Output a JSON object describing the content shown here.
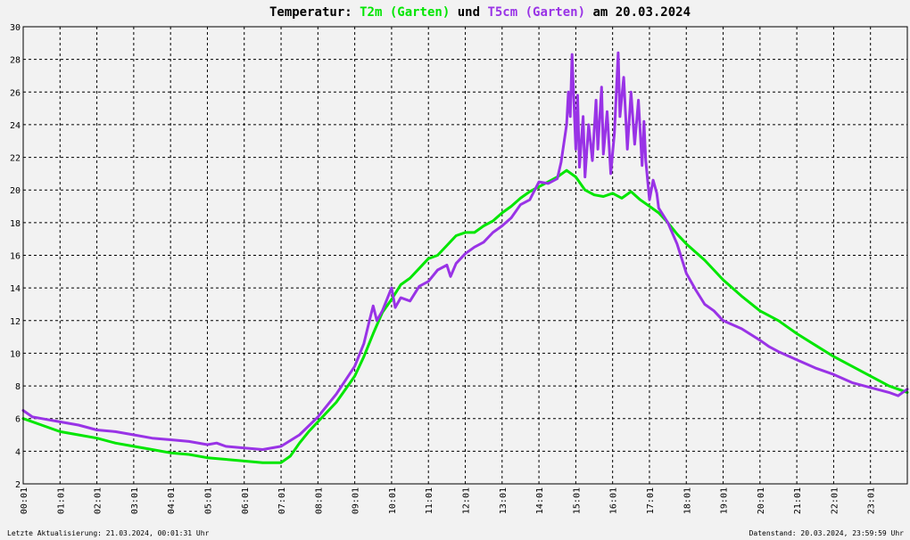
{
  "title": {
    "prefix": "Temperatur: ",
    "series1": "T2m (Garten)",
    "joiner": " und ",
    "series2": "T5cm (Garten)",
    "suffix": " am 20.03.2024"
  },
  "footer": {
    "left": "Letzte Aktualisierung: 21.03.2024, 00:01:31 Uhr",
    "right": "Datenstand: 20.03.2024, 23:59:59 Uhr"
  },
  "colors": {
    "t2m": "#00e600",
    "t5cm": "#9933e6",
    "grid": "#000000",
    "background": "#f2f2f2"
  },
  "chart_data": {
    "type": "line",
    "title": "Temperatur: T2m (Garten) und T5cm (Garten) am 20.03.2024",
    "x_tick_labels": [
      "00:01",
      "01:01",
      "02:01",
      "03:01",
      "04:01",
      "05:01",
      "06:01",
      "07:01",
      "08:01",
      "09:01",
      "10:01",
      "11:01",
      "12:01",
      "13:01",
      "14:01",
      "15:01",
      "16:01",
      "17:01",
      "18:01",
      "19:01",
      "20:01",
      "21:01",
      "22:01",
      "23:01"
    ],
    "y_tick_labels": [
      "2",
      "4",
      "6",
      "8",
      "10",
      "12",
      "14",
      "16",
      "18",
      "20",
      "22",
      "24",
      "26",
      "28",
      "30"
    ],
    "xlim": [
      0,
      24
    ],
    "ylim": [
      2,
      30
    ],
    "grid": true,
    "series": [
      {
        "name": "T2m (Garten)",
        "color": "#00e600",
        "points": [
          [
            0,
            6.0
          ],
          [
            0.5,
            5.6
          ],
          [
            1,
            5.2
          ],
          [
            1.5,
            5.0
          ],
          [
            2,
            4.8
          ],
          [
            2.5,
            4.5
          ],
          [
            3,
            4.3
          ],
          [
            3.5,
            4.1
          ],
          [
            4,
            3.9
          ],
          [
            4.5,
            3.8
          ],
          [
            5,
            3.6
          ],
          [
            5.5,
            3.5
          ],
          [
            6,
            3.4
          ],
          [
            6.5,
            3.3
          ],
          [
            7,
            3.3
          ],
          [
            7.25,
            3.7
          ],
          [
            7.5,
            4.5
          ],
          [
            7.75,
            5.2
          ],
          [
            8,
            5.8
          ],
          [
            8.5,
            7.0
          ],
          [
            9,
            8.6
          ],
          [
            9.25,
            9.8
          ],
          [
            9.5,
            11.2
          ],
          [
            9.75,
            12.5
          ],
          [
            10,
            13.3
          ],
          [
            10.25,
            14.2
          ],
          [
            10.5,
            14.6
          ],
          [
            10.75,
            15.2
          ],
          [
            11,
            15.8
          ],
          [
            11.25,
            16.0
          ],
          [
            11.5,
            16.6
          ],
          [
            11.75,
            17.2
          ],
          [
            12,
            17.4
          ],
          [
            12.25,
            17.4
          ],
          [
            12.5,
            17.8
          ],
          [
            12.75,
            18.1
          ],
          [
            13,
            18.6
          ],
          [
            13.25,
            19.0
          ],
          [
            13.5,
            19.5
          ],
          [
            13.75,
            19.9
          ],
          [
            14,
            20.2
          ],
          [
            14.25,
            20.5
          ],
          [
            14.5,
            20.8
          ],
          [
            14.75,
            21.2
          ],
          [
            15,
            20.8
          ],
          [
            15.25,
            20.0
          ],
          [
            15.5,
            19.7
          ],
          [
            15.75,
            19.6
          ],
          [
            16,
            19.8
          ],
          [
            16.25,
            19.5
          ],
          [
            16.5,
            19.9
          ],
          [
            16.75,
            19.4
          ],
          [
            17,
            19.0
          ],
          [
            17.25,
            18.6
          ],
          [
            17.5,
            18.0
          ],
          [
            17.75,
            17.3
          ],
          [
            18,
            16.7
          ],
          [
            18.5,
            15.7
          ],
          [
            19,
            14.5
          ],
          [
            19.5,
            13.5
          ],
          [
            20,
            12.6
          ],
          [
            20.5,
            12.0
          ],
          [
            21,
            11.2
          ],
          [
            21.5,
            10.5
          ],
          [
            22,
            9.8
          ],
          [
            22.5,
            9.2
          ],
          [
            23,
            8.6
          ],
          [
            23.5,
            8.0
          ],
          [
            24,
            7.6
          ]
        ]
      },
      {
        "name": "T5cm (Garten)",
        "color": "#9933e6",
        "points": [
          [
            0,
            6.5
          ],
          [
            0.25,
            6.1
          ],
          [
            0.5,
            6.0
          ],
          [
            1,
            5.8
          ],
          [
            1.5,
            5.6
          ],
          [
            2,
            5.3
          ],
          [
            2.5,
            5.2
          ],
          [
            3,
            5.0
          ],
          [
            3.5,
            4.8
          ],
          [
            4,
            4.7
          ],
          [
            4.5,
            4.6
          ],
          [
            5,
            4.4
          ],
          [
            5.25,
            4.5
          ],
          [
            5.5,
            4.3
          ],
          [
            6,
            4.2
          ],
          [
            6.5,
            4.1
          ],
          [
            7,
            4.3
          ],
          [
            7.5,
            5.0
          ],
          [
            8,
            6.1
          ],
          [
            8.5,
            7.5
          ],
          [
            9,
            9.2
          ],
          [
            9.25,
            10.6
          ],
          [
            9.4,
            12.0
          ],
          [
            9.5,
            12.9
          ],
          [
            9.6,
            12.0
          ],
          [
            9.75,
            12.6
          ],
          [
            10,
            14.0
          ],
          [
            10.1,
            12.8
          ],
          [
            10.25,
            13.4
          ],
          [
            10.5,
            13.2
          ],
          [
            10.75,
            14.1
          ],
          [
            11,
            14.4
          ],
          [
            11.25,
            15.1
          ],
          [
            11.5,
            15.4
          ],
          [
            11.6,
            14.7
          ],
          [
            11.75,
            15.5
          ],
          [
            12,
            16.1
          ],
          [
            12.25,
            16.5
          ],
          [
            12.5,
            16.8
          ],
          [
            12.75,
            17.4
          ],
          [
            13,
            17.8
          ],
          [
            13.25,
            18.3
          ],
          [
            13.5,
            19.1
          ],
          [
            13.75,
            19.4
          ],
          [
            14,
            20.5
          ],
          [
            14.25,
            20.4
          ],
          [
            14.5,
            20.7
          ],
          [
            14.6,
            21.7
          ],
          [
            14.75,
            24.0
          ],
          [
            14.8,
            26.0
          ],
          [
            14.85,
            24.5
          ],
          [
            14.9,
            28.3
          ],
          [
            15,
            22.5
          ],
          [
            15.05,
            25.8
          ],
          [
            15.1,
            21.4
          ],
          [
            15.2,
            24.5
          ],
          [
            15.25,
            20.8
          ],
          [
            15.35,
            24.0
          ],
          [
            15.45,
            21.8
          ],
          [
            15.55,
            25.5
          ],
          [
            15.6,
            22.5
          ],
          [
            15.7,
            26.3
          ],
          [
            15.75,
            22.2
          ],
          [
            15.85,
            24.8
          ],
          [
            15.95,
            21.0
          ],
          [
            16.05,
            23.5
          ],
          [
            16.15,
            28.4
          ],
          [
            16.2,
            24.5
          ],
          [
            16.3,
            26.9
          ],
          [
            16.4,
            22.5
          ],
          [
            16.5,
            26.0
          ],
          [
            16.6,
            22.8
          ],
          [
            16.7,
            25.5
          ],
          [
            16.8,
            21.5
          ],
          [
            16.85,
            24.2
          ],
          [
            16.9,
            21.8
          ],
          [
            17,
            19.4
          ],
          [
            17.1,
            20.6
          ],
          [
            17.2,
            19.8
          ],
          [
            17.25,
            18.9
          ],
          [
            17.5,
            18.0
          ],
          [
            17.75,
            16.7
          ],
          [
            18,
            14.9
          ],
          [
            18.25,
            13.9
          ],
          [
            18.5,
            13.0
          ],
          [
            18.75,
            12.6
          ],
          [
            19,
            12.0
          ],
          [
            19.5,
            11.5
          ],
          [
            20,
            10.8
          ],
          [
            20.25,
            10.4
          ],
          [
            20.5,
            10.1
          ],
          [
            21,
            9.6
          ],
          [
            21.5,
            9.1
          ],
          [
            22,
            8.7
          ],
          [
            22.5,
            8.2
          ],
          [
            23,
            7.9
          ],
          [
            23.5,
            7.6
          ],
          [
            23.75,
            7.4
          ],
          [
            24,
            7.8
          ]
        ]
      }
    ]
  }
}
